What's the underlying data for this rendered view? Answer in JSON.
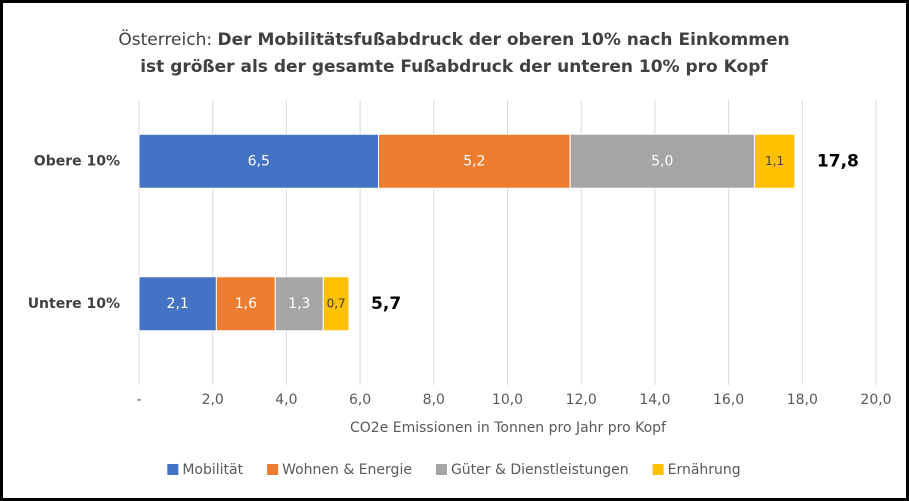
{
  "chart_data": {
    "type": "stacked-barh",
    "title_prefix": "Österreich:",
    "title_lines": [
      "Der Mobilitätsfußabdruck der oberen 10% nach Einkommen",
      "ist größer als der gesamte Fußabdruck der unteren 10% pro Kopf"
    ],
    "xlabel": "CO2e Emissionen in Tonnen pro Jahr pro Kopf",
    "categories": [
      "Obere 10%",
      "Untere 10%"
    ],
    "series": [
      {
        "name": "Mobilität",
        "color": "#4472c4",
        "values": [
          6.5,
          2.1
        ],
        "value_labels": [
          "6,5",
          "2,1"
        ]
      },
      {
        "name": "Wohnen & Energie",
        "color": "#ed7d31",
        "values": [
          5.2,
          1.6
        ],
        "value_labels": [
          "5,2",
          "1,6"
        ]
      },
      {
        "name": "Güter & Dienstleistungen",
        "color": "#a5a5a5",
        "values": [
          5.0,
          1.3
        ],
        "value_labels": [
          "5,0",
          "1,3"
        ]
      },
      {
        "name": "Ernährung",
        "color": "#ffc000",
        "values": [
          1.1,
          0.7
        ],
        "value_labels": [
          "1,1",
          "0,7"
        ]
      }
    ],
    "totals": [
      17.8,
      5.7
    ],
    "total_labels": [
      "17,8",
      "5,7"
    ],
    "xlim": [
      0,
      20
    ],
    "xticks": [
      {
        "value": 0,
        "label": "-"
      },
      {
        "value": 2,
        "label": "2,0"
      },
      {
        "value": 4,
        "label": "4,0"
      },
      {
        "value": 6,
        "label": "6,0"
      },
      {
        "value": 8,
        "label": "8,0"
      },
      {
        "value": 10,
        "label": "10,0"
      },
      {
        "value": 12,
        "label": "12,0"
      },
      {
        "value": 14,
        "label": "14,0"
      },
      {
        "value": 16,
        "label": "16,0"
      },
      {
        "value": 18,
        "label": "18,0"
      },
      {
        "value": 20,
        "label": "20,0"
      }
    ],
    "grid": true,
    "legend": "bottom"
  }
}
